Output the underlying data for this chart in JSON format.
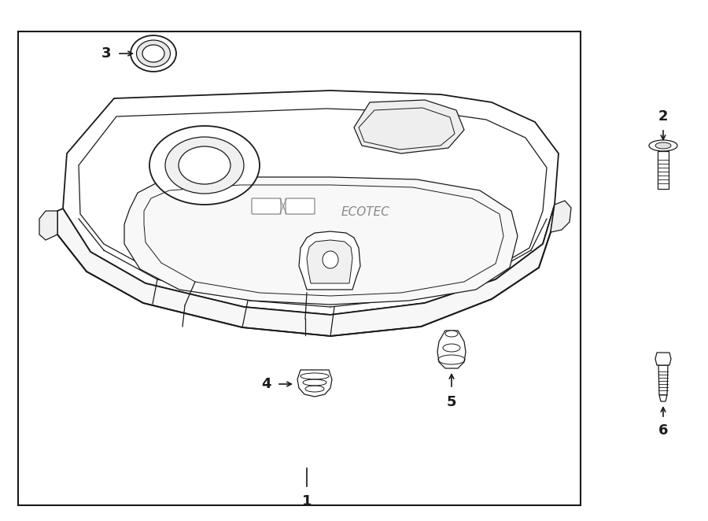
{
  "bg_color": "#ffffff",
  "line_color": "#1a1a1a",
  "gray_line": "#888888",
  "border": [
    0.025,
    0.06,
    0.795,
    0.91
  ],
  "figsize": [
    9.0,
    6.62
  ],
  "dpi": 100
}
